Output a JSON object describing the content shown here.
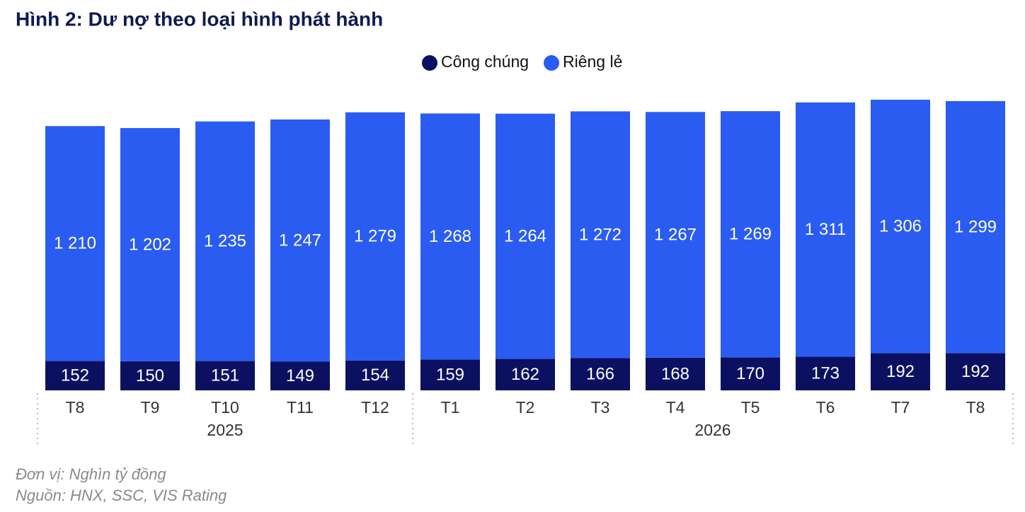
{
  "chart_data": {
    "type": "stacked-bar",
    "title": "Hình 2: Dư nợ theo loại hình phát hành",
    "groups": [
      {
        "name": "2025",
        "categories": [
          "T8",
          "T9",
          "T10",
          "T11",
          "T12"
        ]
      },
      {
        "name": "2026",
        "categories": [
          "T1",
          "T2",
          "T3",
          "T4",
          "T5",
          "T6",
          "T7",
          "T8"
        ]
      }
    ],
    "series": [
      {
        "name": "Công chúng",
        "color": "#0b1160",
        "values": [
          152,
          150,
          151,
          149,
          154,
          159,
          162,
          166,
          168,
          170,
          173,
          192,
          192
        ]
      },
      {
        "name": "Riêng lẻ",
        "color": "#2a5cf2",
        "values": [
          1210,
          1202,
          1235,
          1247,
          1279,
          1268,
          1264,
          1272,
          1267,
          1269,
          1311,
          1306,
          1299
        ],
        "value_labels": [
          "1 210",
          "1 202",
          "1 235",
          "1 247",
          "1 279",
          "1 268",
          "1 264",
          "1 272",
          "1 267",
          "1 269",
          "1 311",
          "1 306",
          "1 299"
        ]
      }
    ],
    "notes": [
      "Đơn vị: Nghìn tỷ đồng",
      "Nguồn: HNX, SSC, VIS Rating"
    ]
  }
}
